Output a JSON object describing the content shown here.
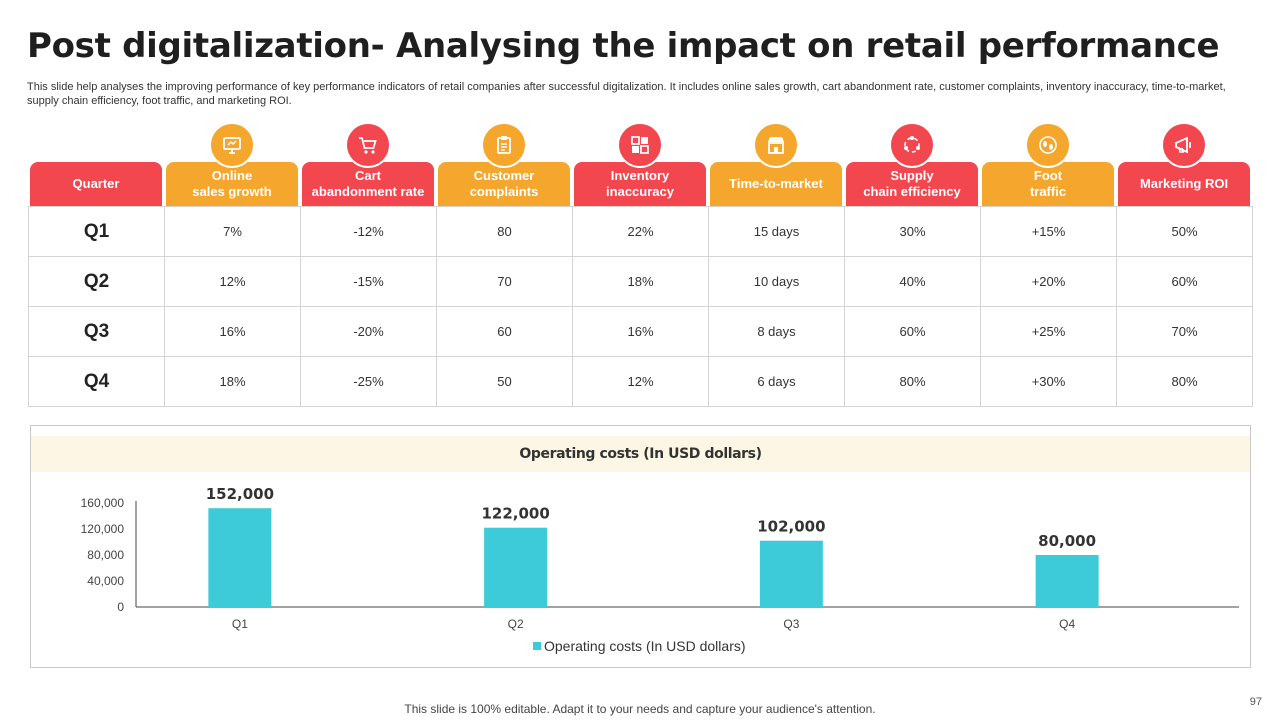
{
  "title": "Post digitalization- Analysing the impact on retail performance",
  "subtitle": "This slide help analyses the improving performance of key performance indicators of retail companies after successful digitalization. It includes online sales growth, cart abandonment rate, customer complaints, inventory inaccuracy, time-to-market, supply chain efficiency, foot traffic, and marketing ROI.",
  "colors": {
    "red": "#f2474f",
    "orange": "#f5a72d",
    "bar": "#3ecbd9",
    "band": "#fdf6e4"
  },
  "table": {
    "headers": [
      {
        "label": "Quarter",
        "color": "red",
        "icon": ""
      },
      {
        "label": "Online\nsales growth",
        "color": "orange",
        "icon": "computer-icon"
      },
      {
        "label": "Cart\nabandonment rate",
        "color": "red",
        "icon": "shopping-cart-icon"
      },
      {
        "label": "Customer\ncomplaints",
        "color": "orange",
        "icon": "clipboard-icon"
      },
      {
        "label": "Inventory\ninaccuracy",
        "color": "red",
        "icon": "inventory-icon"
      },
      {
        "label": "Time-to-market",
        "color": "orange",
        "icon": "store-icon"
      },
      {
        "label": "Supply\nchain efficiency",
        "color": "red",
        "icon": "supply-chain-icon"
      },
      {
        "label": "Foot\ntraffic",
        "color": "orange",
        "icon": "footsteps-icon"
      },
      {
        "label": "Marketing ROI",
        "color": "red",
        "icon": "marketing-icon"
      }
    ],
    "rows": [
      [
        "Q1",
        "7%",
        "-12%",
        "80",
        "22%",
        "15 days",
        "30%",
        "+15%",
        "50%"
      ],
      [
        "Q2",
        "12%",
        "-15%",
        "70",
        "18%",
        "10 days",
        "40%",
        "+20%",
        "60%"
      ],
      [
        "Q3",
        "16%",
        "-20%",
        "60",
        "16%",
        "8 days",
        "60%",
        "+25%",
        "70%"
      ],
      [
        "Q4",
        "18%",
        "-25%",
        "50",
        "12%",
        "6 days",
        "80%",
        "+30%",
        "80%"
      ]
    ]
  },
  "chart_data": {
    "type": "bar",
    "title": "Operating costs (In USD dollars)",
    "categories": [
      "Q1",
      "Q2",
      "Q3",
      "Q4"
    ],
    "series": [
      {
        "name": "Operating costs (In USD dollars)",
        "values": [
          152000,
          122000,
          102000,
          80000
        ],
        "labels": [
          "152,000",
          "122,000",
          "102,000",
          "80,000"
        ]
      }
    ],
    "ylim": [
      0,
      160000
    ],
    "yticks": [
      0,
      40000,
      80000,
      120000,
      160000
    ],
    "ytick_labels": [
      "0",
      "40,000",
      "80,000",
      "120,000",
      "160,000"
    ],
    "legend": "bottom",
    "grid": false
  },
  "footer": "This slide is 100% editable. Adapt it to your needs and capture your audience's attention.",
  "page_number": "97"
}
